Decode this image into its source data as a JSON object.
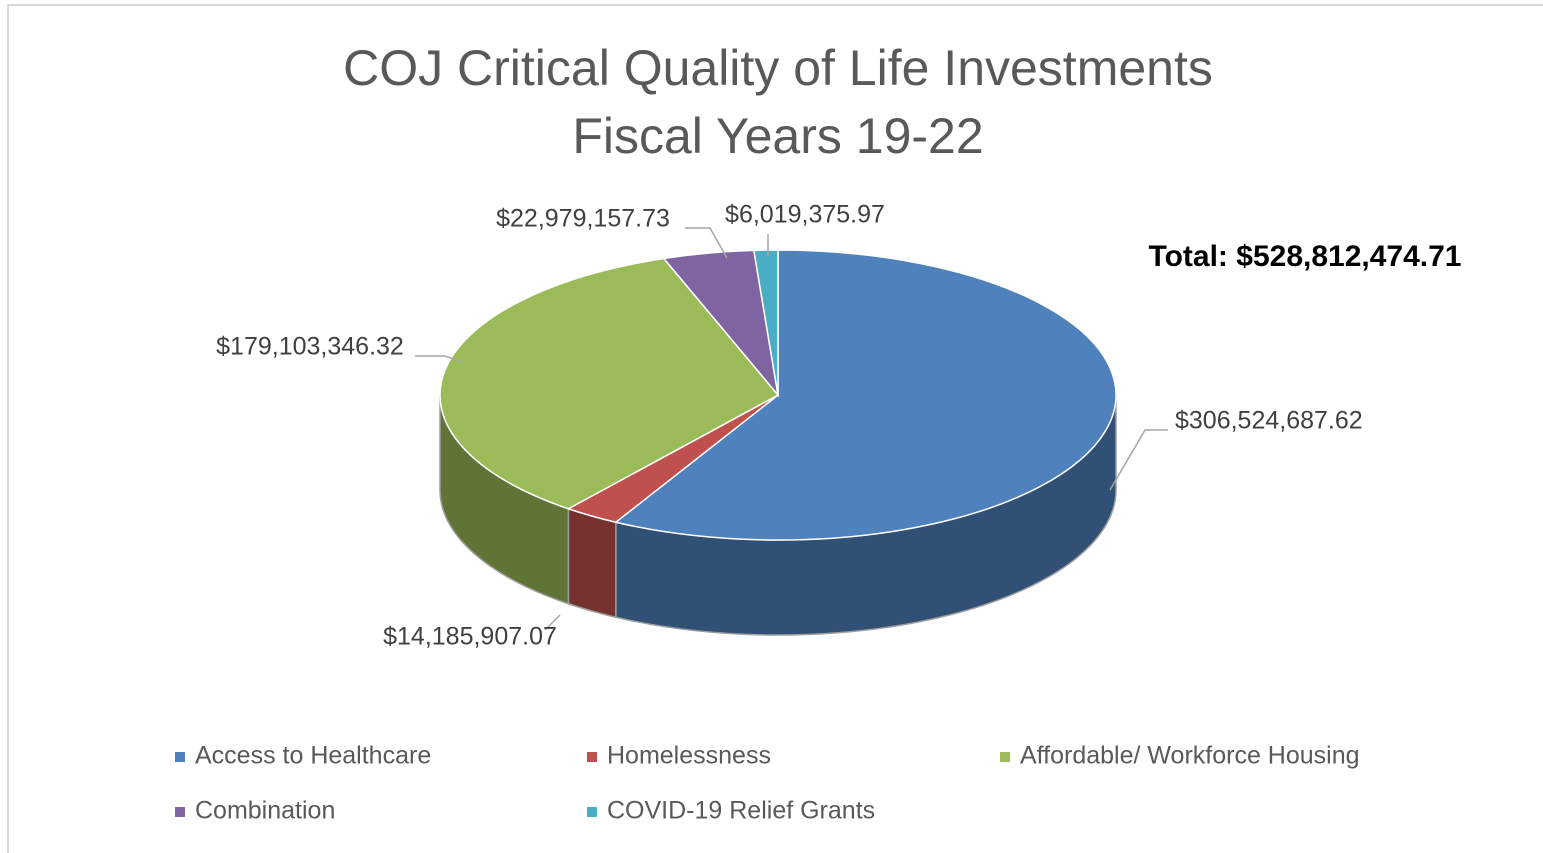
{
  "chart_data": {
    "type": "pie3d",
    "title": "COJ Critical Quality of Life Investments",
    "subtitle": "Fiscal Years 19-22",
    "annotation": "Total: $528,812,474.71",
    "categories": [
      "Access to Healthcare",
      "Homelessness",
      "Affordable/ Workforce Housing",
      "Combination",
      "COVID-19 Relief Grants"
    ],
    "values": [
      306524687.62,
      14185907.07,
      179103346.32,
      22979157.73,
      6019375.97
    ],
    "value_labels": [
      "$306,524,687.62",
      "$14,185,907.07",
      "$179,103,346.32",
      "$22,979,157.73",
      "$6,019,375.97"
    ],
    "colors": [
      "#4f81bd",
      "#c0504d",
      "#9bbb59",
      "#8064a2",
      "#4bacc6"
    ],
    "legend": "bottom"
  }
}
